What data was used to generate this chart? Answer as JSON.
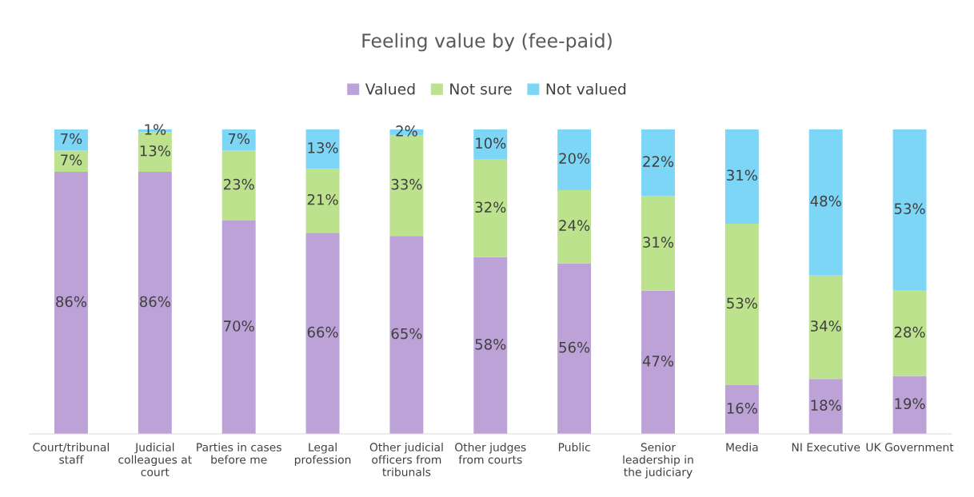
{
  "chart_data": {
    "type": "bar",
    "stacked": true,
    "title": "Feeling value by (fee-paid)",
    "categories": [
      "Court/tribunal\nstaff",
      "Judicial\ncolleagues at\ncourt",
      "Parties in cases\nbefore me",
      "Legal\nprofession",
      "Other judicial\nofficers from\ntribunals",
      "Other judges\nfrom courts",
      "Public",
      "Senior\nleadership in\nthe judiciary",
      "Media",
      "NI Executive",
      "UK Government"
    ],
    "series": [
      {
        "name": "Valued",
        "color": "#bca2d6",
        "values": [
          86,
          86,
          70,
          66,
          65,
          58,
          56,
          47,
          16,
          18,
          19
        ],
        "value_labels": [
          "86%",
          "86%",
          "70%",
          "66%",
          "65%",
          "58%",
          "56%",
          "47%",
          "16%",
          "18%",
          "19%"
        ]
      },
      {
        "name": "Not sure",
        "color": "#bce28e",
        "values": [
          7,
          13,
          23,
          21,
          33,
          32,
          24,
          31,
          53,
          34,
          28
        ],
        "value_labels": [
          "7%",
          "13%",
          "23%",
          "21%",
          "33%",
          "32%",
          "24%",
          "31%",
          "53%",
          "34%",
          "28%"
        ]
      },
      {
        "name": "Not valued",
        "color": "#7dd6f6",
        "values": [
          7,
          1,
          7,
          13,
          2,
          10,
          20,
          22,
          31,
          48,
          53
        ],
        "value_labels": [
          "7%",
          "1%",
          "7%",
          "13%",
          "2%",
          "10%",
          "20%",
          "22%",
          "31%",
          "48%",
          "53%"
        ]
      }
    ],
    "legend": "top",
    "grid": false
  }
}
